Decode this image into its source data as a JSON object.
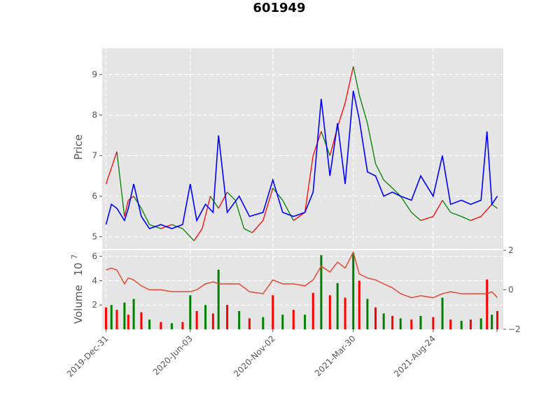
{
  "chart_data": {
    "type": "line",
    "title": "601949",
    "colors": {
      "up": "#ff0000",
      "down": "#008000",
      "price_line": "#0000ff",
      "indicator": "#e24a33",
      "background": "#e5e5e5",
      "grid": "#ffffff"
    },
    "price_panel": {
      "ylabel": "Price",
      "ylim": [
        4.7,
        9.65
      ],
      "yticks": [
        5,
        6,
        7,
        8,
        9
      ],
      "candles_close": [
        [
          "2019-12-31",
          6.3
        ],
        [
          "2020-01-10",
          6.7
        ],
        [
          "2020-01-20",
          7.1
        ],
        [
          "2020-02-03",
          5.5
        ],
        [
          "2020-02-10",
          5.9
        ],
        [
          "2020-02-20",
          6.0
        ],
        [
          "2020-03-05",
          5.7
        ],
        [
          "2020-03-20",
          5.3
        ],
        [
          "2020-04-10",
          5.2
        ],
        [
          "2020-04-30",
          5.3
        ],
        [
          "2020-05-20",
          5.2
        ],
        [
          "2020-06-10",
          4.9
        ],
        [
          "2020-06-25",
          5.2
        ],
        [
          "2020-07-10",
          6.0
        ],
        [
          "2020-07-25",
          5.7
        ],
        [
          "2020-08-10",
          6.1
        ],
        [
          "2020-08-25",
          5.9
        ],
        [
          "2020-09-10",
          5.2
        ],
        [
          "2020-09-25",
          5.1
        ],
        [
          "2020-10-15",
          5.4
        ],
        [
          "2020-11-02",
          6.2
        ],
        [
          "2020-11-20",
          5.9
        ],
        [
          "2020-12-10",
          5.4
        ],
        [
          "2020-12-31",
          5.6
        ],
        [
          "2021-01-15",
          7.0
        ],
        [
          "2021-01-30",
          7.6
        ],
        [
          "2021-02-15",
          7.0
        ],
        [
          "2021-03-01",
          7.7
        ],
        [
          "2021-03-15",
          8.3
        ],
        [
          "2021-03-30",
          9.2
        ],
        [
          "2021-04-10",
          8.5
        ],
        [
          "2021-04-25",
          7.8
        ],
        [
          "2021-05-10",
          6.8
        ],
        [
          "2021-05-25",
          6.4
        ],
        [
          "2021-06-10",
          6.2
        ],
        [
          "2021-06-25",
          6.0
        ],
        [
          "2021-07-15",
          5.6
        ],
        [
          "2021-08-01",
          5.4
        ],
        [
          "2021-08-24",
          5.5
        ],
        [
          "2021-09-10",
          5.9
        ],
        [
          "2021-09-25",
          5.6
        ],
        [
          "2021-10-15",
          5.5
        ],
        [
          "2021-11-01",
          5.4
        ],
        [
          "2021-11-20",
          5.5
        ],
        [
          "2021-12-10",
          5.8
        ],
        [
          "2021-12-20",
          5.7
        ]
      ],
      "blue_line": [
        [
          "2019-12-31",
          5.3
        ],
        [
          "2020-01-10",
          5.8
        ],
        [
          "2020-01-20",
          5.7
        ],
        [
          "2020-02-03",
          5.4
        ],
        [
          "2020-02-10",
          5.7
        ],
        [
          "2020-02-20",
          6.3
        ],
        [
          "2020-03-05",
          5.5
        ],
        [
          "2020-03-20",
          5.2
        ],
        [
          "2020-04-10",
          5.3
        ],
        [
          "2020-04-30",
          5.2
        ],
        [
          "2020-05-20",
          5.3
        ],
        [
          "2020-06-03",
          6.3
        ],
        [
          "2020-06-15",
          5.4
        ],
        [
          "2020-07-01",
          5.8
        ],
        [
          "2020-07-15",
          5.6
        ],
        [
          "2020-07-25",
          7.5
        ],
        [
          "2020-08-10",
          5.6
        ],
        [
          "2020-09-01",
          6.0
        ],
        [
          "2020-09-20",
          5.5
        ],
        [
          "2020-10-15",
          5.6
        ],
        [
          "2020-11-02",
          6.4
        ],
        [
          "2020-11-20",
          5.6
        ],
        [
          "2020-12-10",
          5.5
        ],
        [
          "2020-12-31",
          5.6
        ],
        [
          "2021-01-15",
          6.1
        ],
        [
          "2021-01-30",
          8.4
        ],
        [
          "2021-02-15",
          6.5
        ],
        [
          "2021-03-01",
          7.8
        ],
        [
          "2021-03-15",
          6.3
        ],
        [
          "2021-03-30",
          8.6
        ],
        [
          "2021-04-10",
          7.9
        ],
        [
          "2021-04-25",
          6.6
        ],
        [
          "2021-05-10",
          6.5
        ],
        [
          "2021-05-25",
          6.0
        ],
        [
          "2021-06-10",
          6.1
        ],
        [
          "2021-06-25",
          6.0
        ],
        [
          "2021-07-15",
          5.9
        ],
        [
          "2021-08-01",
          6.5
        ],
        [
          "2021-08-24",
          6.0
        ],
        [
          "2021-09-10",
          7.0
        ],
        [
          "2021-09-25",
          5.8
        ],
        [
          "2021-10-15",
          5.9
        ],
        [
          "2021-11-01",
          5.8
        ],
        [
          "2021-11-20",
          5.9
        ],
        [
          "2021-12-01",
          7.6
        ],
        [
          "2021-12-10",
          5.8
        ],
        [
          "2021-12-20",
          6.0
        ]
      ]
    },
    "volume_panel": {
      "ylabel": "Volume",
      "ylim": [
        0,
        6.5
      ],
      "yticks": [
        2,
        4,
        6
      ],
      "scale_label": "10",
      "scale_exponent": "7",
      "right_axis": {
        "ylim": [
          -2,
          2
        ],
        "yticks": [
          -2,
          0,
          2
        ],
        "tick_labels": [
          "−2",
          "0",
          "2"
        ]
      },
      "volume": [
        [
          "2019-12-31",
          1.8
        ],
        [
          "2020-01-10",
          2.0
        ],
        [
          "2020-01-20",
          1.6
        ],
        [
          "2020-02-03",
          2.2
        ],
        [
          "2020-02-10",
          1.2
        ],
        [
          "2020-02-20",
          2.5
        ],
        [
          "2020-03-05",
          1.4
        ],
        [
          "2020-03-20",
          0.8
        ],
        [
          "2020-04-10",
          0.6
        ],
        [
          "2020-04-30",
          0.5
        ],
        [
          "2020-05-20",
          0.6
        ],
        [
          "2020-06-03",
          2.8
        ],
        [
          "2020-06-15",
          1.5
        ],
        [
          "2020-07-01",
          2.0
        ],
        [
          "2020-07-15",
          1.3
        ],
        [
          "2020-07-25",
          4.9
        ],
        [
          "2020-08-10",
          2.0
        ],
        [
          "2020-09-01",
          1.5
        ],
        [
          "2020-09-20",
          0.9
        ],
        [
          "2020-10-15",
          1.0
        ],
        [
          "2020-11-02",
          2.8
        ],
        [
          "2020-11-20",
          1.2
        ],
        [
          "2020-12-10",
          1.6
        ],
        [
          "2020-12-31",
          1.2
        ],
        [
          "2021-01-15",
          3.0
        ],
        [
          "2021-01-30",
          6.1
        ],
        [
          "2021-02-15",
          2.8
        ],
        [
          "2021-03-01",
          3.8
        ],
        [
          "2021-03-15",
          2.6
        ],
        [
          "2021-03-30",
          6.3
        ],
        [
          "2021-04-10",
          4.0
        ],
        [
          "2021-04-25",
          2.5
        ],
        [
          "2021-05-10",
          1.8
        ],
        [
          "2021-05-25",
          1.3
        ],
        [
          "2021-06-10",
          1.1
        ],
        [
          "2021-06-25",
          0.9
        ],
        [
          "2021-07-15",
          0.8
        ],
        [
          "2021-08-01",
          1.1
        ],
        [
          "2021-08-24",
          1.0
        ],
        [
          "2021-09-10",
          2.6
        ],
        [
          "2021-09-25",
          0.8
        ],
        [
          "2021-10-15",
          0.7
        ],
        [
          "2021-11-01",
          0.8
        ],
        [
          "2021-11-20",
          0.9
        ],
        [
          "2021-12-01",
          4.1
        ],
        [
          "2021-12-10",
          1.2
        ],
        [
          "2021-12-20",
          1.5
        ]
      ],
      "indicator_right_axis": [
        [
          "2019-12-31",
          1.0
        ],
        [
          "2020-01-10",
          1.1
        ],
        [
          "2020-01-20",
          1.0
        ],
        [
          "2020-02-03",
          0.3
        ],
        [
          "2020-02-10",
          0.6
        ],
        [
          "2020-02-20",
          0.5
        ],
        [
          "2020-03-05",
          0.2
        ],
        [
          "2020-03-20",
          0.0
        ],
        [
          "2020-04-10",
          0.0
        ],
        [
          "2020-04-30",
          -0.1
        ],
        [
          "2020-05-20",
          -0.1
        ],
        [
          "2020-06-03",
          -0.1
        ],
        [
          "2020-06-15",
          0.0
        ],
        [
          "2020-07-01",
          0.3
        ],
        [
          "2020-07-15",
          0.4
        ],
        [
          "2020-07-25",
          0.3
        ],
        [
          "2020-08-10",
          0.3
        ],
        [
          "2020-09-01",
          0.3
        ],
        [
          "2020-09-20",
          -0.1
        ],
        [
          "2020-10-15",
          -0.2
        ],
        [
          "2020-11-02",
          0.5
        ],
        [
          "2020-11-20",
          0.3
        ],
        [
          "2020-12-10",
          0.3
        ],
        [
          "2020-12-31",
          0.2
        ],
        [
          "2021-01-15",
          0.5
        ],
        [
          "2021-01-30",
          1.2
        ],
        [
          "2021-02-15",
          0.9
        ],
        [
          "2021-03-01",
          1.4
        ],
        [
          "2021-03-15",
          1.1
        ],
        [
          "2021-03-30",
          1.9
        ],
        [
          "2021-04-10",
          0.8
        ],
        [
          "2021-04-25",
          0.6
        ],
        [
          "2021-05-10",
          0.5
        ],
        [
          "2021-05-25",
          0.3
        ],
        [
          "2021-06-10",
          0.1
        ],
        [
          "2021-06-25",
          -0.2
        ],
        [
          "2021-07-15",
          -0.4
        ],
        [
          "2021-08-01",
          -0.3
        ],
        [
          "2021-08-24",
          -0.4
        ],
        [
          "2021-09-10",
          -0.2
        ],
        [
          "2021-09-25",
          -0.1
        ],
        [
          "2021-10-15",
          -0.2
        ],
        [
          "2021-11-01",
          -0.2
        ],
        [
          "2021-11-20",
          -0.2
        ],
        [
          "2021-12-01",
          -0.2
        ],
        [
          "2021-12-10",
          -0.1
        ],
        [
          "2021-12-20",
          -0.4
        ]
      ]
    },
    "x_axis": {
      "range": [
        "2019-12-24",
        "2021-12-31"
      ],
      "ticks": [
        [
          "2019-12-31",
          "2019-Dec-31"
        ],
        [
          "2020-06-03",
          "2020-Jun-03"
        ],
        [
          "2020-11-02",
          "2020-Nov-02"
        ],
        [
          "2021-03-30",
          "2021-Mar-30"
        ],
        [
          "2021-08-24",
          "2021-Aug-24"
        ]
      ]
    },
    "grid": true
  }
}
